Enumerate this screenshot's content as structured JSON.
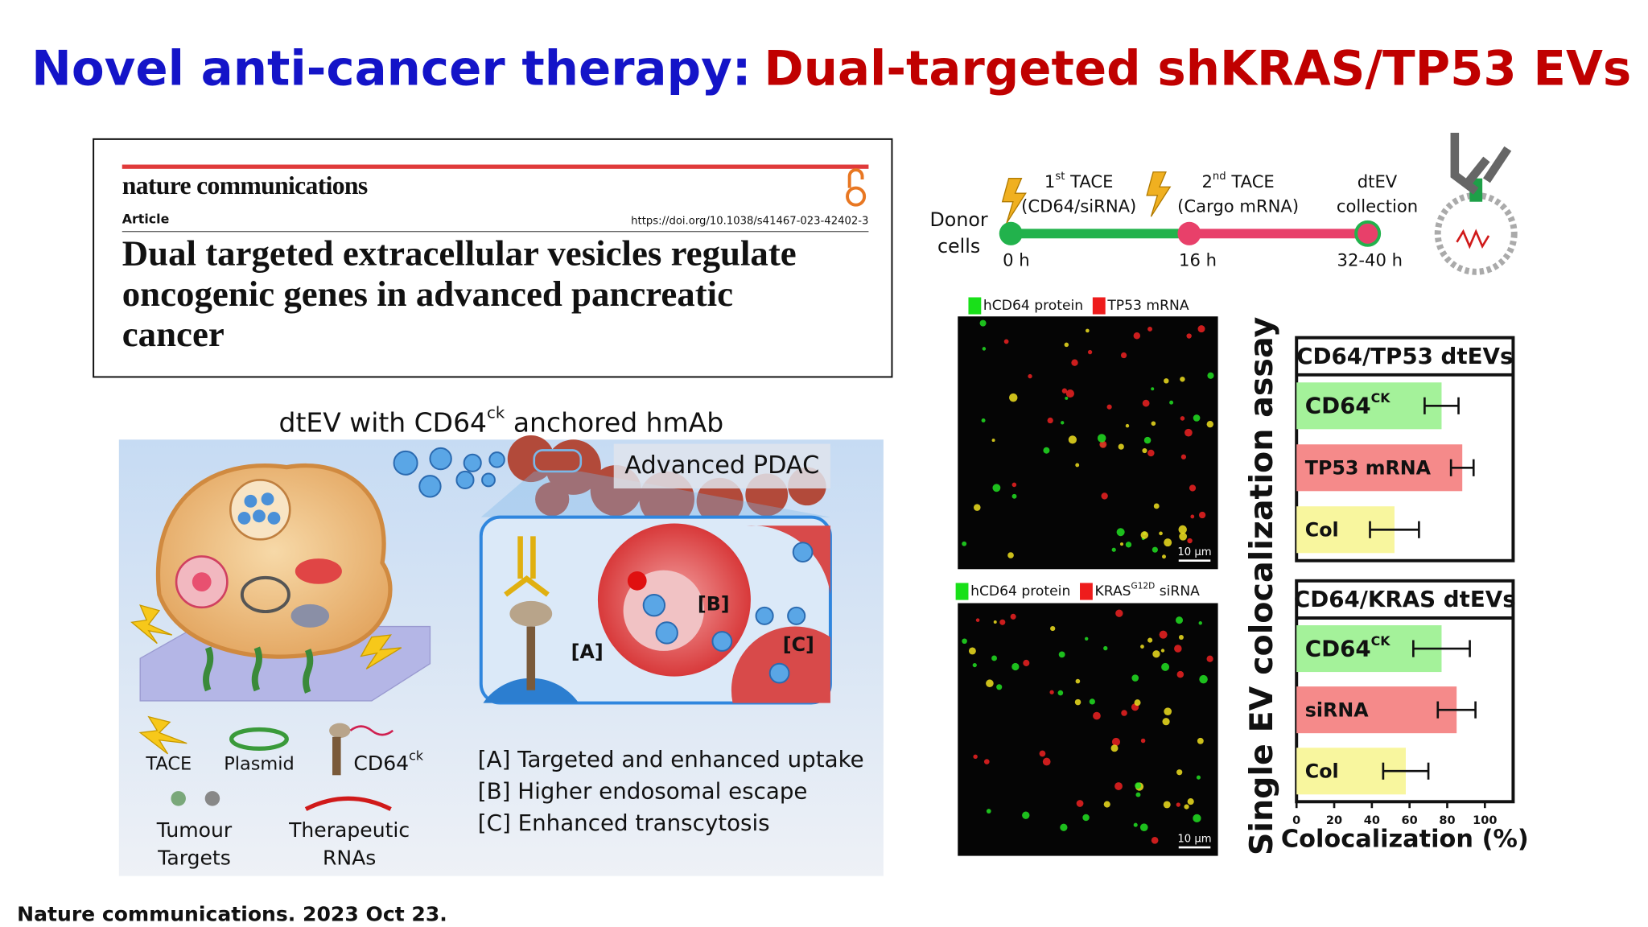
{
  "header": {
    "title_part1": "Novel anti-cancer therapy:",
    "title_part2": "Dual-targeted shKRAS/TP53 EVs"
  },
  "article": {
    "journal": "nature communications",
    "kind": "Article",
    "doi": "https://doi.org/10.1038/s41467-023-42402-3",
    "title_lines": [
      "Dual targeted extracellular vesicles regulate",
      "oncogenic genes in advanced pancreatic",
      "cancer"
    ]
  },
  "diagram": {
    "title": {
      "pre": "dtEV with CD64",
      "sup": "ck",
      "post": " anchored hmAb"
    },
    "site_label": "Advanced PDAC",
    "callouts": [
      "[A]",
      "[B]",
      "[C]"
    ],
    "legend": {
      "tace": "TACE",
      "plasmid": "Plasmid",
      "cd64": {
        "text": "CD64",
        "sup": "ck"
      },
      "targets": [
        "Tumour",
        "Targets"
      ],
      "rnas": [
        "Therapeutic",
        "RNAs"
      ]
    },
    "effects": [
      "[A] Targeted and enhanced uptake",
      "[B] Higher endosomal escape",
      "[C] Enhanced transcytosis"
    ]
  },
  "timeline": {
    "source_lines": [
      "Donor",
      "cells"
    ],
    "steps": [
      {
        "num": "1",
        "sup": "st",
        "name": " TACE",
        "detail": "(CD64/siRNA)"
      },
      {
        "num": "2",
        "sup": "nd",
        "name": " TACE",
        "detail": "(Cargo mRNA)"
      }
    ],
    "end_lines": [
      "dtEV",
      "collection"
    ],
    "times": [
      "0 h",
      "16 h",
      "32-40 h"
    ]
  },
  "micrographs": [
    {
      "legend": [
        {
          "text": "hCD64 protein",
          "color": "#19e019"
        },
        {
          "text": "TP53 mRNA",
          "color": "#ee1c1c"
        }
      ],
      "scale_bar": "10 µm"
    },
    {
      "legend": [
        {
          "text": "hCD64 protein",
          "color": "#19e019"
        },
        {
          "text": "KRAS",
          "sup": "G12D",
          "post": " siRNA",
          "color": "#ee1c1c"
        }
      ],
      "scale_bar": "10 µm"
    }
  ],
  "assay_label": "Single EV colocalization assay",
  "chart_data": [
    {
      "type": "bar",
      "orientation": "horizontal",
      "title": "CD64/TP53 dtEVs",
      "categories": [
        "CD64",
        "TP53 mRNA",
        "Col"
      ],
      "category_superscripts": [
        "CK",
        null,
        null
      ],
      "values": [
        77,
        88,
        52
      ],
      "errors": [
        9,
        6,
        13
      ],
      "colors": [
        "#a4f29a",
        "#f58a8a",
        "#f8f69e"
      ],
      "xlim": [
        0,
        115
      ]
    },
    {
      "type": "bar",
      "orientation": "horizontal",
      "title": "CD64/KRAS dtEVs",
      "categories": [
        "CD64",
        "siRNA",
        "Col"
      ],
      "category_superscripts": [
        "CK",
        null,
        null
      ],
      "values": [
        77,
        85,
        58
      ],
      "errors": [
        15,
        10,
        12
      ],
      "colors": [
        "#a4f29a",
        "#f58a8a",
        "#f8f69e"
      ],
      "xlim": [
        0,
        115
      ],
      "xticks": [
        0,
        20,
        40,
        60,
        80,
        100
      ],
      "xlabel": "Colocalization (%)"
    }
  ],
  "footer": "Nature communications. 2023 Oct 23."
}
